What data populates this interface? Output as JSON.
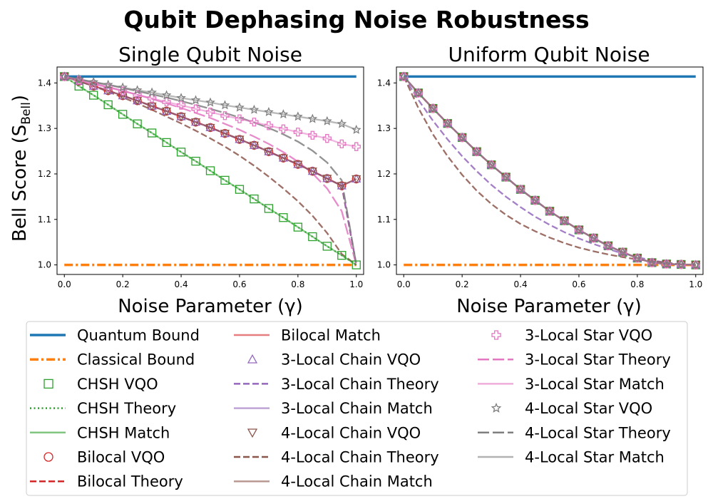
{
  "figure_title": "Qubit Dephasing Noise Robustness",
  "colors": {
    "quantum_bound": "#1f77b4",
    "classical_bound": "#ff7f0e",
    "chsh": "#2ca02c",
    "bilocal": "#d62728",
    "chain3": "#9467bd",
    "chain4": "#8c564b",
    "star3": "#e377c2",
    "star4": "#7f7f7f"
  },
  "legend": {
    "columns": [
      [
        {
          "key": "qb",
          "label": "Quantum Bound",
          "color": "#1f77b4",
          "style": "solid",
          "lw": 3.5
        },
        {
          "key": "cb",
          "label": "Classical Bound",
          "color": "#ff7f0e",
          "style": "dashdot",
          "lw": 3.5
        },
        {
          "key": "chsh_vqo",
          "label": "CHSH VQO",
          "color": "#2ca02c",
          "marker": "square"
        },
        {
          "key": "chsh_th",
          "label": "CHSH Theory",
          "color": "#2ca02c",
          "style": "dotted",
          "lw": 2.5
        },
        {
          "key": "chsh_m",
          "label": "CHSH Match",
          "color": "#2ca02c",
          "style": "solid",
          "lw": 2.5,
          "alpha": 0.6
        },
        {
          "key": "bil_vqo",
          "label": "Bilocal VQO",
          "color": "#d62728",
          "marker": "circle"
        },
        {
          "key": "bil_th",
          "label": "Bilocal Theory",
          "color": "#d62728",
          "style": "dashed",
          "lw": 2.5
        }
      ],
      [
        {
          "key": "bil_m",
          "label": "Bilocal Match",
          "color": "#d62728",
          "style": "solid",
          "lw": 2.5,
          "alpha": 0.6
        },
        {
          "key": "c3_vqo",
          "label": "3-Local Chain VQO",
          "color": "#9467bd",
          "marker": "triangle-up"
        },
        {
          "key": "c3_th",
          "label": "3-Local Chain Theory",
          "color": "#9467bd",
          "style": "dashed",
          "lw": 2.5
        },
        {
          "key": "c3_m",
          "label": "3-Local Chain Match",
          "color": "#9467bd",
          "style": "solid",
          "lw": 2.5,
          "alpha": 0.6
        },
        {
          "key": "c4_vqo",
          "label": "4-Local Chain VQO",
          "color": "#8c564b",
          "marker": "triangle-down"
        },
        {
          "key": "c4_th",
          "label": "4-Local Chain Theory",
          "color": "#8c564b",
          "style": "dashed",
          "lw": 2.5
        },
        {
          "key": "c4_m",
          "label": "4-Local Chain Match",
          "color": "#8c564b",
          "style": "solid",
          "lw": 2.5,
          "alpha": 0.6
        }
      ],
      [
        {
          "key": "s3_vqo",
          "label": "3-Local Star VQO",
          "color": "#e377c2",
          "marker": "plus"
        },
        {
          "key": "s3_th",
          "label": "3-Local Star Theory",
          "color": "#e377c2",
          "style": "longdash",
          "lw": 2.5
        },
        {
          "key": "s3_m",
          "label": "3-Local Star Match",
          "color": "#e377c2",
          "style": "solid",
          "lw": 2.5,
          "alpha": 0.6
        },
        {
          "key": "s4_vqo",
          "label": "4-Local Star VQO",
          "color": "#7f7f7f",
          "marker": "star"
        },
        {
          "key": "s4_th",
          "label": "4-Local Star Theory",
          "color": "#7f7f7f",
          "style": "longdash",
          "lw": 2.5
        },
        {
          "key": "s4_m",
          "label": "4-Local Star Match",
          "color": "#7f7f7f",
          "style": "solid",
          "lw": 2.5,
          "alpha": 0.6
        }
      ]
    ]
  },
  "chart_data": [
    {
      "type": "line",
      "title": "Single Qubit Noise",
      "xlabel": "Noise Parameter (γ)",
      "ylabel": "Bell Score (S",
      "ylabel_sub": "Bell",
      "ylabel_close": ")",
      "xlim": [
        -0.025,
        1.025
      ],
      "ylim": [
        0.979,
        1.435
      ],
      "xticks": [
        "0.0",
        "0.2",
        "0.4",
        "0.6",
        "0.8",
        "1.0"
      ],
      "xtick_values": [
        0,
        0.2,
        0.4,
        0.6,
        0.8,
        1.0
      ],
      "yticks": [
        "1.0",
        "1.1",
        "1.2",
        "1.3",
        "1.4"
      ],
      "ytick_values": [
        1.0,
        1.1,
        1.2,
        1.3,
        1.4
      ],
      "x": [
        0,
        0.05,
        0.1,
        0.15,
        0.2,
        0.25,
        0.3,
        0.35,
        0.4,
        0.45,
        0.5,
        0.55,
        0.6,
        0.65,
        0.7,
        0.75,
        0.8,
        0.85,
        0.9,
        0.95,
        1.0
      ],
      "quantum_bound": 1.414,
      "classical_bound": 1.0,
      "series": [
        {
          "key": "chsh",
          "name": "CHSH",
          "values": [
            1.414,
            1.393,
            1.373,
            1.352,
            1.331,
            1.31,
            1.29,
            1.269,
            1.248,
            1.228,
            1.207,
            1.186,
            1.166,
            1.145,
            1.124,
            1.104,
            1.083,
            1.062,
            1.041,
            1.021,
            1.0
          ]
        },
        {
          "key": "bilocal",
          "name": "Bilocal",
          "values": [
            1.414,
            1.404,
            1.393,
            1.383,
            1.372,
            1.361,
            1.349,
            1.338,
            1.326,
            1.314,
            1.302,
            1.289,
            1.276,
            1.263,
            1.249,
            1.235,
            1.221,
            1.206,
            1.19,
            1.174,
            1.189
          ]
        },
        {
          "key": "chain3",
          "name": "3-Local Chain",
          "values": [
            1.414,
            1.404,
            1.393,
            1.383,
            1.372,
            1.361,
            1.349,
            1.338,
            1.326,
            1.314,
            1.302,
            1.289,
            1.276,
            1.263,
            1.249,
            1.235,
            1.221,
            1.206,
            1.19,
            1.174,
            1.189
          ]
        },
        {
          "key": "chain4",
          "name": "4-Local Chain",
          "values": [
            1.414,
            1.404,
            1.393,
            1.383,
            1.372,
            1.361,
            1.349,
            1.338,
            1.326,
            1.314,
            1.302,
            1.289,
            1.276,
            1.263,
            1.249,
            1.235,
            1.221,
            1.206,
            1.19,
            1.174,
            1.189
          ]
        },
        {
          "key": "star3",
          "name": "3-Local Star",
          "values": [
            1.414,
            1.406,
            1.397,
            1.39,
            1.382,
            1.374,
            1.366,
            1.358,
            1.351,
            1.343,
            1.336,
            1.328,
            1.321,
            1.314,
            1.306,
            1.299,
            1.292,
            1.285,
            1.278,
            1.266,
            1.26
          ]
        },
        {
          "key": "star4",
          "name": "4-Local Star",
          "values": [
            1.414,
            1.408,
            1.402,
            1.396,
            1.39,
            1.384,
            1.379,
            1.373,
            1.367,
            1.362,
            1.357,
            1.351,
            1.346,
            1.341,
            1.336,
            1.331,
            1.326,
            1.321,
            1.316,
            1.31,
            1.297
          ]
        }
      ],
      "theory": [
        {
          "key": "chsh",
          "values": [
            1.414,
            1.393,
            1.373,
            1.352,
            1.331,
            1.31,
            1.29,
            1.269,
            1.248,
            1.228,
            1.207,
            1.186,
            1.166,
            1.145,
            1.124,
            1.104,
            1.083,
            1.062,
            1.041,
            1.021,
            1.0
          ]
        },
        {
          "key": "bilocal",
          "values": [
            1.414,
            1.404,
            1.393,
            1.383,
            1.372,
            1.361,
            1.349,
            1.338,
            1.326,
            1.314,
            1.302,
            1.289,
            1.276,
            1.263,
            1.249,
            1.235,
            1.221,
            1.206,
            1.19,
            1.174,
            1.0
          ]
        },
        {
          "key": "chain3",
          "values": [
            1.414,
            1.404,
            1.393,
            1.383,
            1.372,
            1.361,
            1.349,
            1.338,
            1.326,
            1.314,
            1.302,
            1.289,
            1.276,
            1.263,
            1.249,
            1.235,
            1.221,
            1.206,
            1.19,
            1.174,
            1.0
          ]
        },
        {
          "key": "chain4",
          "values": [
            1.414,
            1.404,
            1.393,
            1.381,
            1.368,
            1.355,
            1.341,
            1.326,
            1.311,
            1.295,
            1.278,
            1.26,
            1.24,
            1.218,
            1.194,
            1.168,
            1.14,
            1.108,
            1.07,
            1.024,
            1.0
          ]
        },
        {
          "key": "star3",
          "values": [
            1.414,
            1.407,
            1.399,
            1.391,
            1.383,
            1.374,
            1.365,
            1.355,
            1.345,
            1.334,
            1.323,
            1.31,
            1.297,
            1.282,
            1.266,
            1.248,
            1.227,
            1.201,
            1.168,
            1.118,
            1.0
          ]
        },
        {
          "key": "star4",
          "values": [
            1.414,
            1.408,
            1.402,
            1.396,
            1.389,
            1.382,
            1.375,
            1.368,
            1.36,
            1.352,
            1.343,
            1.334,
            1.324,
            1.313,
            1.301,
            1.287,
            1.271,
            1.251,
            1.225,
            1.186,
            1.0
          ]
        }
      ]
    },
    {
      "type": "line",
      "title": "Uniform Qubit Noise",
      "xlabel": "Noise Parameter (γ)",
      "xlim": [
        -0.025,
        1.025
      ],
      "ylim": [
        0.979,
        1.435
      ],
      "xticks": [
        "0.0",
        "0.2",
        "0.4",
        "0.6",
        "0.8",
        "1.0"
      ],
      "xtick_values": [
        0,
        0.2,
        0.4,
        0.6,
        0.8,
        1.0
      ],
      "yticks": [
        "1.0",
        "1.1",
        "1.2",
        "1.3",
        "1.4"
      ],
      "ytick_values": [
        1.0,
        1.1,
        1.2,
        1.3,
        1.4
      ],
      "x": [
        0,
        0.05,
        0.1,
        0.15,
        0.2,
        0.25,
        0.3,
        0.35,
        0.4,
        0.45,
        0.5,
        0.55,
        0.6,
        0.65,
        0.7,
        0.75,
        0.8,
        0.85,
        0.9,
        0.95,
        1.0
      ],
      "quantum_bound": 1.414,
      "classical_bound": 1.0,
      "series": [
        {
          "key": "chsh",
          "name": "CHSH",
          "values": [
            1.414,
            1.378,
            1.344,
            1.311,
            1.28,
            1.249,
            1.22,
            1.193,
            1.166,
            1.142,
            1.118,
            1.097,
            1.077,
            1.059,
            1.042,
            1.028,
            1.015,
            1.005,
            1.002,
            1.001,
            1.0
          ]
        },
        {
          "key": "bilocal",
          "name": "Bilocal",
          "values": [
            1.414,
            1.378,
            1.344,
            1.311,
            1.28,
            1.249,
            1.22,
            1.193,
            1.166,
            1.142,
            1.118,
            1.097,
            1.077,
            1.059,
            1.042,
            1.028,
            1.015,
            1.005,
            1.002,
            1.001,
            1.0
          ]
        },
        {
          "key": "chain3",
          "name": "3-Local Chain",
          "values": [
            1.414,
            1.378,
            1.344,
            1.311,
            1.28,
            1.249,
            1.22,
            1.193,
            1.166,
            1.142,
            1.118,
            1.097,
            1.077,
            1.059,
            1.042,
            1.028,
            1.015,
            1.005,
            1.002,
            1.001,
            1.0
          ]
        },
        {
          "key": "chain4",
          "name": "4-Local Chain",
          "values": [
            1.414,
            1.378,
            1.344,
            1.311,
            1.28,
            1.249,
            1.22,
            1.193,
            1.166,
            1.142,
            1.118,
            1.097,
            1.077,
            1.059,
            1.042,
            1.028,
            1.015,
            1.005,
            1.002,
            1.001,
            1.0
          ]
        },
        {
          "key": "star3",
          "name": "3-Local Star",
          "values": [
            1.414,
            1.378,
            1.344,
            1.311,
            1.28,
            1.249,
            1.22,
            1.193,
            1.166,
            1.142,
            1.118,
            1.097,
            1.077,
            1.059,
            1.042,
            1.028,
            1.015,
            1.005,
            1.002,
            1.001,
            1.0
          ]
        },
        {
          "key": "star4",
          "name": "4-Local Star",
          "values": [
            1.414,
            1.378,
            1.344,
            1.311,
            1.28,
            1.249,
            1.22,
            1.193,
            1.166,
            1.142,
            1.118,
            1.097,
            1.077,
            1.059,
            1.042,
            1.028,
            1.015,
            1.005,
            1.002,
            1.001,
            1.0
          ]
        }
      ],
      "theory": [
        {
          "key": "chsh",
          "values": [
            1.414,
            1.378,
            1.344,
            1.311,
            1.28,
            1.249,
            1.22,
            1.193,
            1.166,
            1.142,
            1.118,
            1.097,
            1.077,
            1.059,
            1.042,
            1.028,
            1.015,
            1.005,
            1.002,
            1.001,
            1.0
          ]
        },
        {
          "key": "bilocal",
          "values": [
            1.414,
            1.378,
            1.344,
            1.311,
            1.28,
            1.249,
            1.22,
            1.193,
            1.166,
            1.142,
            1.118,
            1.097,
            1.077,
            1.059,
            1.042,
            1.028,
            1.015,
            1.005,
            1.002,
            1.001,
            1.0
          ]
        },
        {
          "key": "chain3",
          "values": [
            1.414,
            1.363,
            1.317,
            1.276,
            1.239,
            1.206,
            1.176,
            1.15,
            1.127,
            1.106,
            1.088,
            1.072,
            1.058,
            1.046,
            1.035,
            1.025,
            1.017,
            1.01,
            1.005,
            1.001,
            1.0
          ]
        },
        {
          "key": "chain4",
          "values": [
            1.414,
            1.345,
            1.287,
            1.239,
            1.198,
            1.163,
            1.134,
            1.11,
            1.09,
            1.074,
            1.06,
            1.048,
            1.038,
            1.03,
            1.023,
            1.017,
            1.012,
            1.008,
            1.004,
            1.001,
            1.0
          ]
        },
        {
          "key": "star3",
          "values": [
            1.414,
            1.378,
            1.344,
            1.311,
            1.28,
            1.249,
            1.22,
            1.193,
            1.166,
            1.142,
            1.118,
            1.097,
            1.077,
            1.059,
            1.042,
            1.028,
            1.015,
            1.005,
            1.002,
            1.001,
            1.0
          ]
        },
        {
          "key": "star4",
          "values": [
            1.414,
            1.378,
            1.344,
            1.311,
            1.28,
            1.249,
            1.22,
            1.193,
            1.166,
            1.142,
            1.118,
            1.097,
            1.077,
            1.059,
            1.042,
            1.028,
            1.015,
            1.005,
            1.002,
            1.001,
            1.0
          ]
        }
      ]
    }
  ]
}
